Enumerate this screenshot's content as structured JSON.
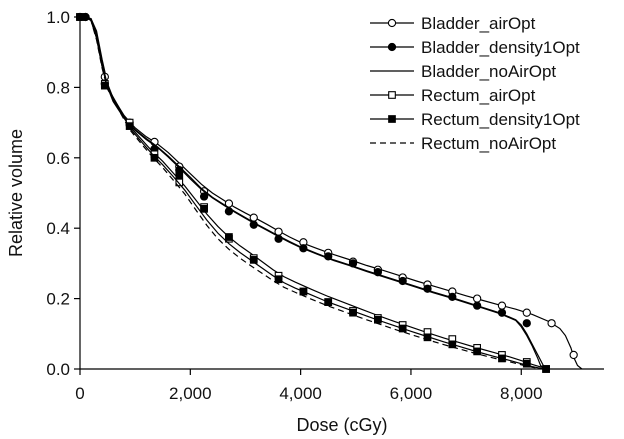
{
  "chart_data": {
    "type": "line",
    "xlabel": "Dose (cGy)",
    "ylabel": "Relative volume",
    "xlim": [
      0,
      9500
    ],
    "ylim": [
      0,
      1.0
    ],
    "x_ticks": [
      0,
      2000,
      4000,
      6000,
      8000
    ],
    "x_tick_labels": [
      "0",
      "2,000",
      "4,000",
      "6,000",
      "8,000"
    ],
    "y_ticks": [
      0,
      0.2,
      0.4,
      0.6,
      0.8,
      1.0
    ],
    "y_tick_labels": [
      "0.0",
      "0.2",
      "0.4",
      "0.6",
      "0.8",
      "1.0"
    ],
    "grid": false,
    "legend_position": "top-right",
    "series": [
      {
        "name": "Bladder_airOpt",
        "color": "#000000",
        "dash": "solid",
        "marker": "circle-open",
        "x": [
          0,
          100,
          200,
          300,
          400,
          500,
          600,
          800,
          1000,
          1200,
          1400,
          1600,
          1800,
          2000,
          2200,
          2400,
          2600,
          2800,
          3000,
          3200,
          3400,
          3600,
          3800,
          4000,
          4300,
          4600,
          4900,
          5200,
          5500,
          5800,
          6100,
          6400,
          6700,
          7000,
          7300,
          7600,
          7900,
          8200,
          8500,
          8700,
          8800,
          8900,
          8960,
          9020,
          9100
        ],
        "y": [
          1.0,
          1.0,
          0.995,
          0.96,
          0.88,
          0.81,
          0.77,
          0.72,
          0.685,
          0.66,
          0.64,
          0.615,
          0.585,
          0.555,
          0.525,
          0.5,
          0.48,
          0.46,
          0.443,
          0.427,
          0.41,
          0.392,
          0.375,
          0.36,
          0.342,
          0.325,
          0.31,
          0.294,
          0.28,
          0.265,
          0.25,
          0.236,
          0.222,
          0.208,
          0.195,
          0.182,
          0.17,
          0.155,
          0.135,
          0.115,
          0.095,
          0.06,
          0.03,
          0.01,
          0.0
        ],
        "marker_x": [
          0,
          100,
          450,
          900,
          1350,
          1800,
          2250,
          2700,
          3150,
          3600,
          4050,
          4500,
          4950,
          5400,
          5850,
          6300,
          6750,
          7200,
          7650,
          8100,
          8550,
          8950
        ],
        "marker_y": [
          1.0,
          1.0,
          0.83,
          0.7,
          0.645,
          0.575,
          0.505,
          0.47,
          0.43,
          0.39,
          0.36,
          0.33,
          0.305,
          0.282,
          0.26,
          0.24,
          0.22,
          0.2,
          0.18,
          0.16,
          0.13,
          0.04
        ]
      },
      {
        "name": "Bladder_density1Opt",
        "color": "#000000",
        "dash": "solid",
        "marker": "circle-filled",
        "x": [
          0,
          100,
          200,
          300,
          400,
          500,
          600,
          800,
          1000,
          1200,
          1400,
          1600,
          1800,
          2000,
          2200,
          2400,
          2600,
          2800,
          3000,
          3200,
          3400,
          3600,
          3800,
          4000,
          4300,
          4600,
          4900,
          5200,
          5500,
          5800,
          6100,
          6400,
          6700,
          7000,
          7300,
          7600,
          7900,
          8000,
          8100,
          8200,
          8300,
          8400,
          8450
        ],
        "y": [
          1.0,
          1.0,
          0.995,
          0.955,
          0.87,
          0.805,
          0.765,
          0.715,
          0.68,
          0.655,
          0.632,
          0.605,
          0.575,
          0.545,
          0.513,
          0.488,
          0.468,
          0.448,
          0.43,
          0.412,
          0.395,
          0.378,
          0.362,
          0.347,
          0.328,
          0.31,
          0.295,
          0.279,
          0.264,
          0.249,
          0.234,
          0.219,
          0.205,
          0.19,
          0.175,
          0.16,
          0.14,
          0.125,
          0.1,
          0.07,
          0.04,
          0.01,
          0.0
        ],
        "marker_x": [
          0,
          100,
          450,
          900,
          1350,
          1800,
          2250,
          2700,
          3150,
          3600,
          4050,
          4500,
          4950,
          5400,
          5850,
          6300,
          6750,
          7200,
          7650,
          8100
        ],
        "marker_y": [
          1.0,
          1.0,
          0.81,
          0.695,
          0.625,
          0.565,
          0.49,
          0.448,
          0.41,
          0.37,
          0.343,
          0.32,
          0.3,
          0.275,
          0.25,
          0.228,
          0.205,
          0.18,
          0.16,
          0.13
        ]
      },
      {
        "name": "Bladder_noAirOpt",
        "color": "#000000",
        "dash": "solid",
        "marker": "none",
        "x": [
          0,
          100,
          200,
          300,
          400,
          500,
          600,
          800,
          1000,
          1200,
          1400,
          1600,
          1800,
          2000,
          2200,
          2400,
          2600,
          2800,
          3000,
          3200,
          3400,
          3600,
          3800,
          4000,
          4300,
          4600,
          4900,
          5200,
          5500,
          5800,
          6100,
          6400,
          6700,
          7000,
          7300,
          7600,
          7900,
          8000,
          8100,
          8200,
          8300,
          8350,
          8420
        ],
        "y": [
          1.0,
          1.0,
          0.995,
          0.95,
          0.865,
          0.8,
          0.76,
          0.712,
          0.678,
          0.652,
          0.63,
          0.602,
          0.572,
          0.54,
          0.51,
          0.486,
          0.466,
          0.446,
          0.428,
          0.41,
          0.393,
          0.376,
          0.36,
          0.345,
          0.326,
          0.308,
          0.293,
          0.277,
          0.262,
          0.247,
          0.232,
          0.217,
          0.203,
          0.188,
          0.173,
          0.158,
          0.138,
          0.12,
          0.095,
          0.065,
          0.03,
          0.01,
          0.0
        ],
        "marker_x": [],
        "marker_y": []
      },
      {
        "name": "Rectum_airOpt",
        "color": "#000000",
        "dash": "solid",
        "marker": "square-open",
        "x": [
          0,
          100,
          200,
          300,
          400,
          500,
          700,
          900,
          1100,
          1300,
          1500,
          1700,
          1900,
          2100,
          2300,
          2500,
          2700,
          2900,
          3100,
          3300,
          3500,
          3700,
          3900,
          4200,
          4500,
          4800,
          5100,
          5400,
          5700,
          6000,
          6300,
          6600,
          6900,
          7200,
          7500,
          7800,
          8000,
          8200,
          8350,
          8450,
          8500
        ],
        "y": [
          1.0,
          1.0,
          0.99,
          0.94,
          0.86,
          0.8,
          0.745,
          0.69,
          0.655,
          0.62,
          0.59,
          0.555,
          0.52,
          0.48,
          0.44,
          0.405,
          0.375,
          0.35,
          0.328,
          0.305,
          0.282,
          0.262,
          0.247,
          0.226,
          0.206,
          0.188,
          0.17,
          0.152,
          0.135,
          0.119,
          0.103,
          0.088,
          0.074,
          0.06,
          0.047,
          0.034,
          0.024,
          0.013,
          0.006,
          0.002,
          0.0
        ],
        "marker_x": [
          0,
          450,
          900,
          1350,
          1800,
          2250,
          2700,
          3150,
          3600,
          4050,
          4500,
          4950,
          5400,
          5850,
          6300,
          6750,
          7200,
          7650,
          8100,
          8450
        ],
        "marker_y": [
          1.0,
          0.81,
          0.7,
          0.61,
          0.53,
          0.46,
          0.37,
          0.315,
          0.265,
          0.22,
          0.19,
          0.165,
          0.145,
          0.125,
          0.105,
          0.085,
          0.06,
          0.04,
          0.02,
          0.0
        ]
      },
      {
        "name": "Rectum_density1Opt",
        "color": "#000000",
        "dash": "solid",
        "marker": "square-filled",
        "x": [
          0,
          100,
          200,
          300,
          400,
          500,
          700,
          900,
          1100,
          1300,
          1500,
          1700,
          1900,
          2100,
          2300,
          2500,
          2700,
          2900,
          3100,
          3300,
          3500,
          3700,
          3900,
          4200,
          4500,
          4800,
          5100,
          5400,
          5700,
          6000,
          6300,
          6600,
          6900,
          7200,
          7500,
          7800,
          8000,
          8200,
          8350,
          8450
        ],
        "y": [
          1.0,
          1.0,
          0.99,
          0.94,
          0.86,
          0.8,
          0.742,
          0.685,
          0.648,
          0.612,
          0.58,
          0.545,
          0.508,
          0.465,
          0.423,
          0.386,
          0.356,
          0.331,
          0.309,
          0.287,
          0.265,
          0.245,
          0.23,
          0.21,
          0.19,
          0.173,
          0.156,
          0.139,
          0.123,
          0.107,
          0.092,
          0.077,
          0.063,
          0.049,
          0.036,
          0.024,
          0.015,
          0.007,
          0.002,
          0.0
        ],
        "marker_x": [
          0,
          450,
          900,
          1350,
          1800,
          2250,
          2700,
          3150,
          3600,
          4050,
          4500,
          4950,
          5400,
          5850,
          6300,
          6750,
          7200,
          7650,
          8100,
          8450
        ],
        "marker_y": [
          1.0,
          0.805,
          0.69,
          0.6,
          0.55,
          0.455,
          0.375,
          0.31,
          0.255,
          0.22,
          0.19,
          0.16,
          0.14,
          0.115,
          0.09,
          0.07,
          0.05,
          0.03,
          0.015,
          0.0
        ]
      },
      {
        "name": "Rectum_noAirOpt",
        "color": "#000000",
        "dash": "dashed",
        "marker": "none",
        "x": [
          0,
          100,
          200,
          300,
          400,
          500,
          700,
          900,
          1100,
          1300,
          1500,
          1700,
          1900,
          2100,
          2300,
          2500,
          2700,
          2900,
          3100,
          3300,
          3500,
          3700,
          3900,
          4200,
          4500,
          4800,
          5100,
          5400,
          5700,
          6000,
          6300,
          6600,
          6900,
          7200,
          7500,
          7800,
          8000,
          8200,
          8350,
          8450
        ],
        "y": [
          1.0,
          1.0,
          0.99,
          0.935,
          0.855,
          0.795,
          0.737,
          0.68,
          0.642,
          0.605,
          0.572,
          0.535,
          0.497,
          0.452,
          0.408,
          0.37,
          0.34,
          0.315,
          0.293,
          0.272,
          0.251,
          0.232,
          0.218,
          0.198,
          0.179,
          0.162,
          0.145,
          0.129,
          0.113,
          0.098,
          0.083,
          0.069,
          0.056,
          0.043,
          0.031,
          0.02,
          0.012,
          0.005,
          0.001,
          0.0
        ],
        "marker_x": [],
        "marker_y": []
      }
    ]
  }
}
